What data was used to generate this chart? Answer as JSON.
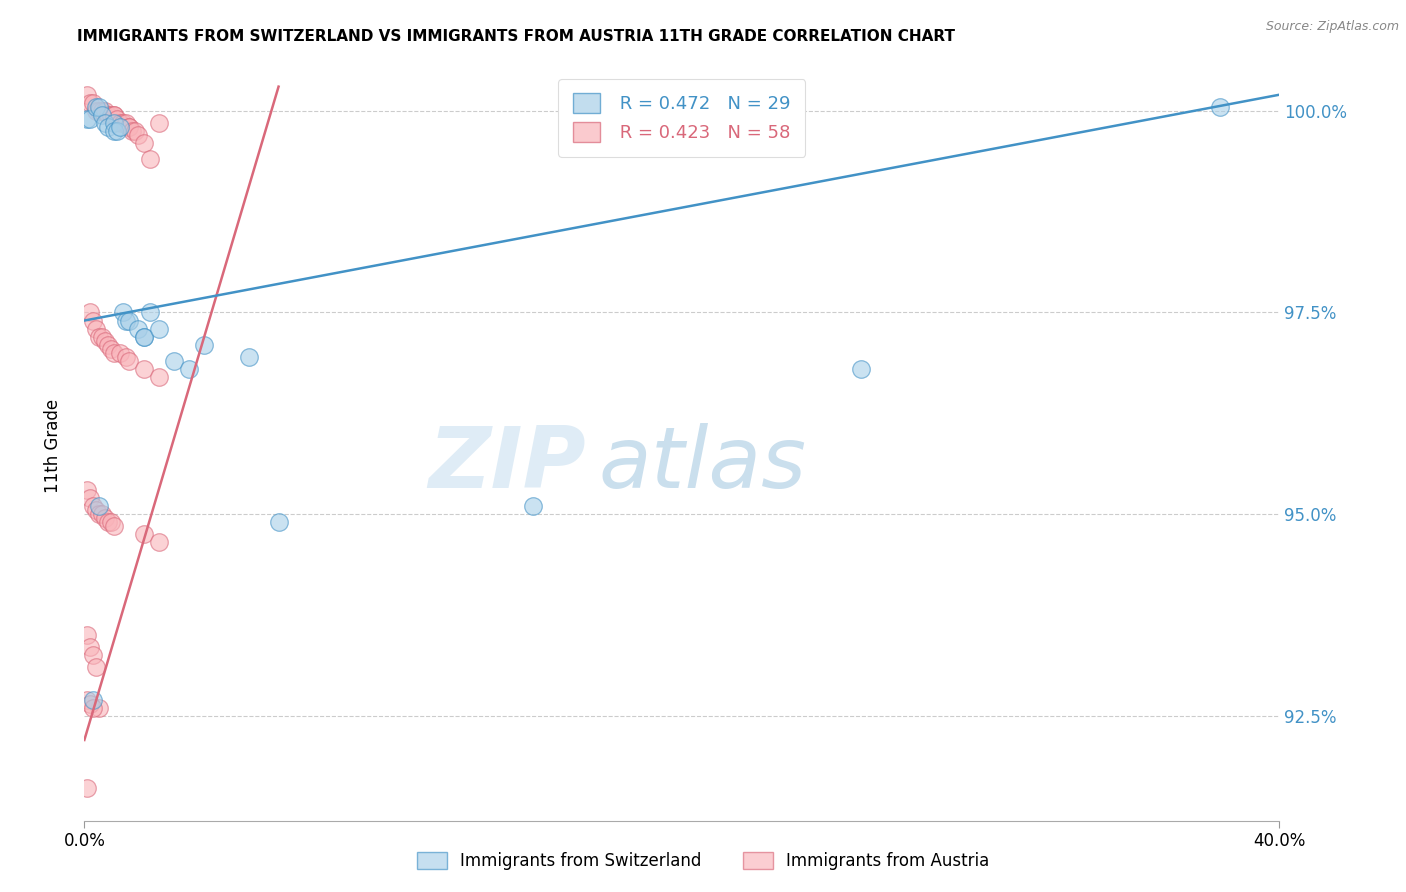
{
  "title": "IMMIGRANTS FROM SWITZERLAND VS IMMIGRANTS FROM AUSTRIA 11TH GRADE CORRELATION CHART",
  "source": "Source: ZipAtlas.com",
  "ylabel": "11th Grade",
  "xlim": [
    0.0,
    0.4
  ],
  "ylim": [
    0.912,
    1.006
  ],
  "yticks": [
    0.925,
    0.95,
    0.975,
    1.0
  ],
  "ytick_labels": [
    "92.5%",
    "95.0%",
    "97.5%",
    "100.0%"
  ],
  "xtick_labels": [
    "0.0%",
    "40.0%"
  ],
  "legend_blue_r": "R = 0.472",
  "legend_blue_n": "N = 29",
  "legend_pink_r": "R = 0.423",
  "legend_pink_n": "N = 58",
  "blue_fill": "#a8cfe8",
  "blue_edge": "#4292c6",
  "pink_fill": "#f9b4ba",
  "pink_edge": "#d9687a",
  "blue_line": "#4292c6",
  "pink_line": "#d9687a",
  "watermark_zip": "ZIP",
  "watermark_atlas": "atlas",
  "legend1_label": "Immigrants from Switzerland",
  "legend2_label": "Immigrants from Austria",
  "blue_line_x0": 0.0,
  "blue_line_y0": 0.974,
  "blue_line_x1": 0.4,
  "blue_line_y1": 1.002,
  "pink_line_x0": 0.0,
  "pink_line_y0": 0.922,
  "pink_line_x1": 0.065,
  "pink_line_y1": 1.003,
  "blue_x": [
    0.001,
    0.002,
    0.004,
    0.005,
    0.006,
    0.007,
    0.008,
    0.01,
    0.01,
    0.011,
    0.012,
    0.013,
    0.014,
    0.015,
    0.018,
    0.02,
    0.02,
    0.022,
    0.025,
    0.03,
    0.035,
    0.04,
    0.055,
    0.065,
    0.15,
    0.26,
    0.38,
    0.005,
    0.003
  ],
  "blue_y": [
    0.999,
    0.999,
    1.0005,
    1.0005,
    0.9995,
    0.9985,
    0.998,
    0.9985,
    0.9975,
    0.9975,
    0.998,
    0.975,
    0.974,
    0.974,
    0.973,
    0.972,
    0.972,
    0.975,
    0.973,
    0.969,
    0.968,
    0.971,
    0.9695,
    0.949,
    0.951,
    0.968,
    1.0005,
    0.951,
    0.927
  ],
  "pink_x": [
    0.001,
    0.002,
    0.003,
    0.004,
    0.005,
    0.006,
    0.007,
    0.008,
    0.009,
    0.01,
    0.01,
    0.011,
    0.012,
    0.013,
    0.014,
    0.015,
    0.015,
    0.016,
    0.017,
    0.018,
    0.02,
    0.022,
    0.025,
    0.002,
    0.003,
    0.004,
    0.005,
    0.006,
    0.007,
    0.008,
    0.009,
    0.01,
    0.012,
    0.014,
    0.015,
    0.02,
    0.025,
    0.001,
    0.002,
    0.003,
    0.004,
    0.005,
    0.006,
    0.007,
    0.008,
    0.009,
    0.01,
    0.02,
    0.025,
    0.001,
    0.002,
    0.003,
    0.004,
    0.005,
    0.001,
    0.002,
    0.003,
    0.001
  ],
  "pink_y": [
    1.002,
    1.001,
    1.001,
    1.0,
    1.0,
    1.0,
    1.0,
    0.9995,
    0.9995,
    0.9995,
    0.9995,
    0.999,
    0.9985,
    0.9985,
    0.9985,
    0.998,
    0.998,
    0.9975,
    0.9975,
    0.997,
    0.996,
    0.994,
    0.9985,
    0.975,
    0.974,
    0.973,
    0.972,
    0.972,
    0.9715,
    0.971,
    0.9705,
    0.97,
    0.97,
    0.9695,
    0.969,
    0.968,
    0.967,
    0.953,
    0.952,
    0.951,
    0.9505,
    0.95,
    0.95,
    0.9495,
    0.949,
    0.949,
    0.9485,
    0.9475,
    0.9465,
    0.935,
    0.9335,
    0.9325,
    0.931,
    0.926,
    0.927,
    0.9265,
    0.926,
    0.916
  ]
}
